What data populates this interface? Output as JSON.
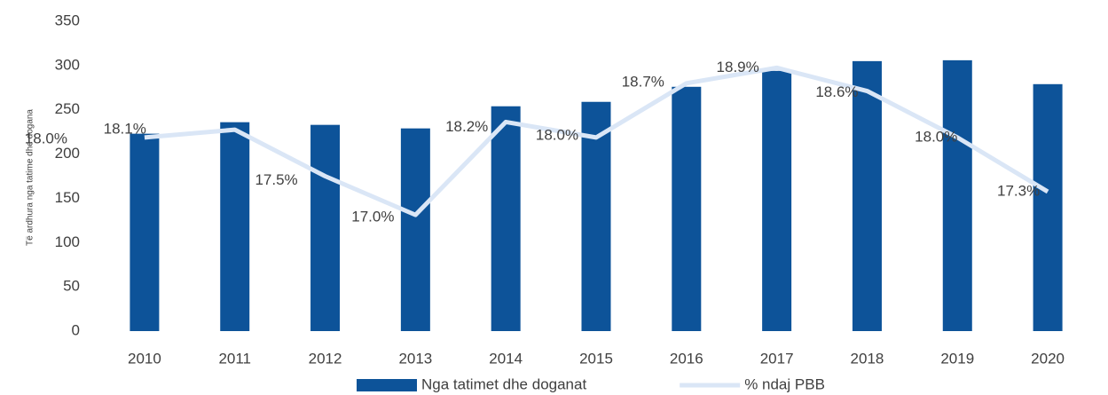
{
  "chart_data": {
    "type": "bar",
    "y_label": "Të ardhura nga tatime dhe dogana",
    "categories": [
      "2010",
      "2011",
      "2012",
      "2013",
      "2014",
      "2015",
      "2016",
      "2017",
      "2018",
      "2019",
      "2020"
    ],
    "ylim": [
      0,
      350
    ],
    "yticks": [
      0,
      50,
      100,
      150,
      200,
      250,
      300,
      350
    ],
    "y2lim": [
      15.5,
      19.5
    ],
    "legend": "bottom",
    "series": [
      {
        "name": "Nga tatimet dhe doganat",
        "type": "bar",
        "color": "#0d5399",
        "values": [
          223,
          236,
          233,
          229,
          254,
          259,
          276,
          294,
          305,
          306,
          279
        ]
      },
      {
        "name": "% ndaj PBB",
        "type": "line",
        "axis": "y2",
        "color": "#dae6f6",
        "values": [
          18.0,
          18.1,
          17.5,
          17.0,
          18.2,
          18.0,
          18.7,
          18.9,
          18.6,
          18.0,
          17.3
        ],
        "value_labels": [
          "18.0%",
          "18.1%",
          "17.5%",
          "17.0%",
          "18.2%",
          "18.0%",
          "18.7%",
          "18.9%",
          "18.6%",
          "18.0%",
          "17.3%"
        ]
      }
    ]
  }
}
